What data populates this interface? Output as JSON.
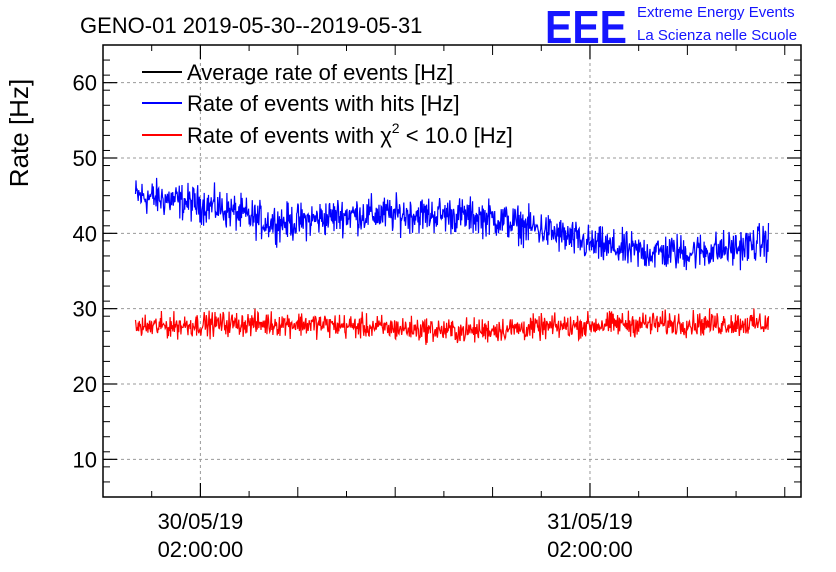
{
  "header": {
    "title": "GENO-01 2019-05-30--2019-05-31",
    "brand_logo": "EEE",
    "brand_line1": "Extreme Energy Events",
    "brand_line2": "La Scienza nelle Scuole"
  },
  "chart_data": {
    "type": "line",
    "title": "GENO-01 2019-05-30--2019-05-31",
    "ylabel": "Rate [Hz]",
    "xlabel": "",
    "ylim": [
      5,
      65
    ],
    "xlim": [
      "2019-05-29 20:00:00",
      "2019-05-31 15:00:00"
    ],
    "grid": true,
    "legend_position": "top-left",
    "yticks": [
      10,
      20,
      30,
      40,
      50,
      60
    ],
    "xticks": [
      {
        "x": "2019-05-30 02:00:00",
        "label_date": "30/05/19",
        "label_time": "02:00:00"
      },
      {
        "x": "2019-05-31 02:00:00",
        "label_date": "31/05/19",
        "label_time": "02:00:00"
      }
    ],
    "x_start": "2019-05-29 22:00:00",
    "x_end": "2019-05-31 13:00:00",
    "series": [
      {
        "name": "Average rate of events [Hz]",
        "color": "#000000",
        "x": [],
        "values": []
      },
      {
        "name": "Rate of events with hits [Hz]",
        "color": "#0000ff",
        "x": [
          "2019-05-29 22:00:00",
          "2019-05-30 00:00:00",
          "2019-05-30 03:00:00",
          "2019-05-30 06:00:00",
          "2019-05-30 08:00:00",
          "2019-05-30 11:00:00",
          "2019-05-30 14:00:00",
          "2019-05-30 17:00:00",
          "2019-05-30 20:00:00",
          "2019-05-30 23:00:00",
          "2019-05-31 02:00:00",
          "2019-05-31 05:00:00",
          "2019-05-31 08:00:00",
          "2019-05-31 11:00:00",
          "2019-05-31 13:00:00"
        ],
        "values": [
          45,
          44.5,
          43.5,
          41.5,
          41.5,
          42.5,
          42.5,
          42.5,
          42,
          40.5,
          38.5,
          37.5,
          37.5,
          38,
          39
        ]
      },
      {
        "name": "Rate of events with χ² < 10.0 [Hz]",
        "legend_prefix": "Rate of events with ",
        "legend_chi": "χ",
        "legend_sup": "2",
        "legend_suffix": " < 10.0 [Hz]",
        "color": "#ff0000",
        "x": [
          "2019-05-29 22:00:00",
          "2019-05-30 03:00:00",
          "2019-05-30 08:00:00",
          "2019-05-30 13:00:00",
          "2019-05-30 18:00:00",
          "2019-05-30 23:00:00",
          "2019-05-31 04:00:00",
          "2019-05-31 09:00:00",
          "2019-05-31 13:00:00"
        ],
        "values": [
          27.5,
          28,
          28,
          27.5,
          27,
          27.5,
          28,
          28,
          28
        ]
      }
    ]
  }
}
